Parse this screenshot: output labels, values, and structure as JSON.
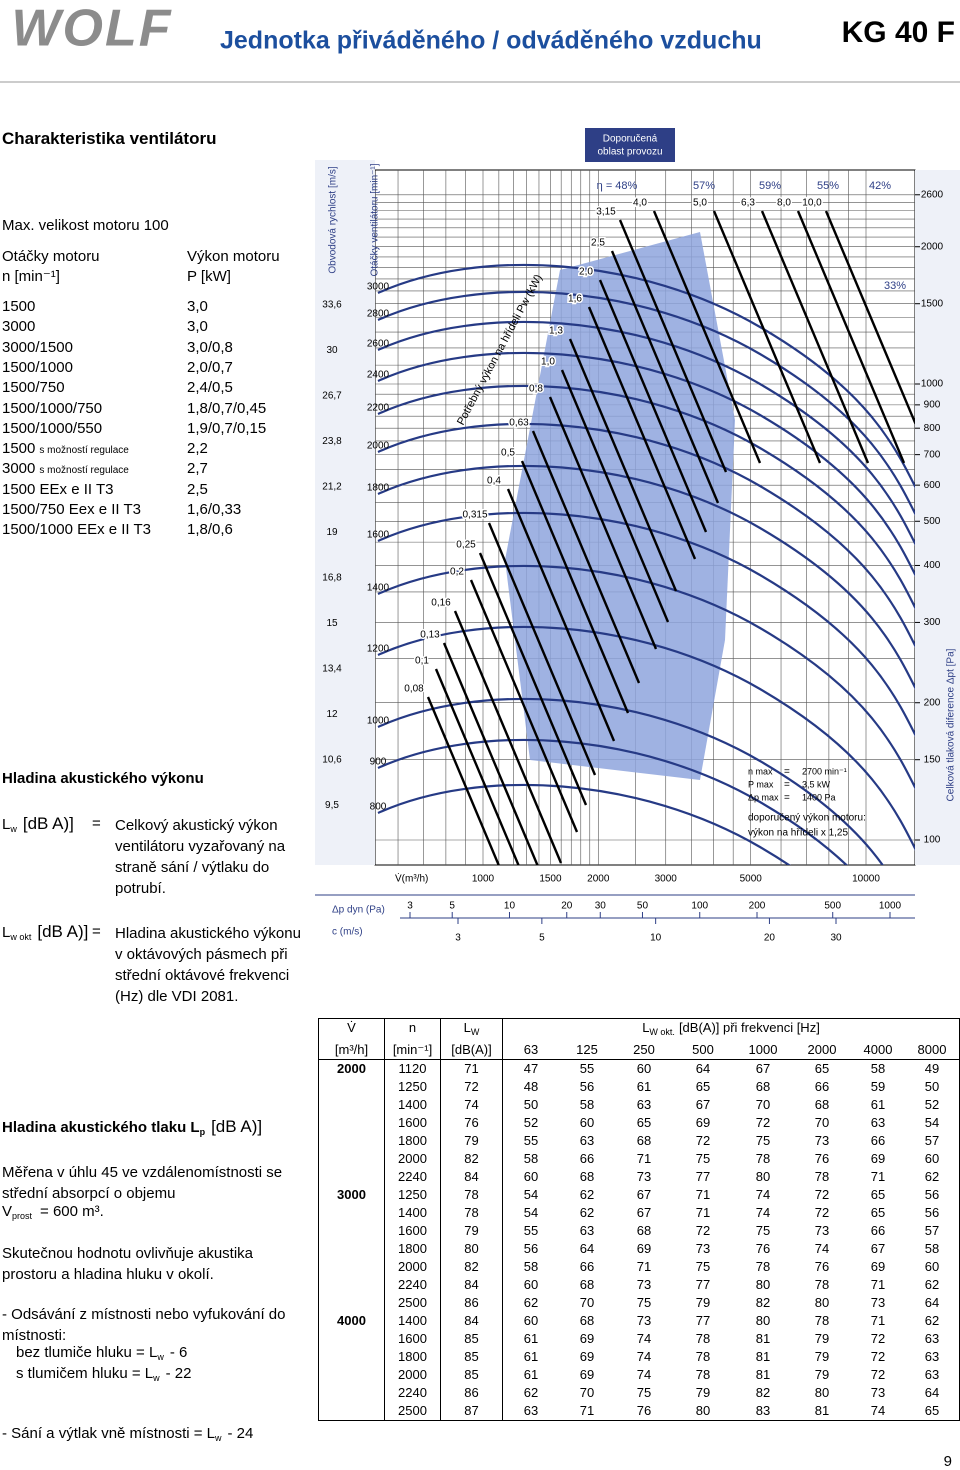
{
  "header": {
    "logo": "WOLF",
    "title": "Jednotka přiváděného / odváděného vzduchu",
    "model": "KG 40 F"
  },
  "section_title": "Charakteristika ventilátoru",
  "motor": {
    "heading": "Max. velikost motoru 100",
    "col_speed": "Otáčky motoru",
    "col_power": "Výkon motoru",
    "unit_speed": "n [min⁻¹]",
    "unit_power": "P [kW]",
    "rows": [
      {
        "n": "1500",
        "p": "3,0"
      },
      {
        "n": "3000",
        "p": "3,0"
      },
      {
        "n": "3000/1500",
        "p": "3,0/0,8"
      },
      {
        "n": "1500/1000",
        "p": "2,0/0,7"
      },
      {
        "n": "1500/750",
        "p": "2,4/0,5"
      },
      {
        "n": "1500/1000/750",
        "p": "1,8/0,7/0,45"
      },
      {
        "n": "1500/1000/550",
        "p": "1,9/0,7/0,15"
      },
      {
        "n": "1500",
        "note": "s možností regulace",
        "p": "2,2"
      },
      {
        "n": "3000",
        "note": "s možností regulace",
        "p": "2,7"
      },
      {
        "n": "1500 EEx e II T3",
        "p": "2,5"
      },
      {
        "n": "1500/750 Eex e II T3",
        "p": "1,6/0,33"
      },
      {
        "n": "1500/1000 EEx e II T3",
        "p": "1,8/0,6"
      }
    ]
  },
  "acoustic": {
    "title": "Hladina akustického výkonu",
    "lw": {
      "sym": "L",
      "sub": "w",
      "unit": "[dB A)]",
      "eq": "=",
      "desc": "Celkový akustický výkon ventilátoru vyzařovaný na straně sání / výtlaku do potrubí."
    },
    "lwokt": {
      "sym": "L",
      "sub": "w okt",
      "unit": "[dB A)]",
      "eq": "=",
      "desc": "Hladina akustického výkonu v oktávových pásmech při střední oktávové frekvenci (Hz) dle VDI 2081."
    }
  },
  "pressure": {
    "title": "Hladina akustického tlaku L",
    "sub": "p",
    "unit": "[dB A)]",
    "text1": "Měřena v úhlu 45 ve vzdálenomístnosti se střední absorpcí o objemu",
    "vol_sym": "V",
    "vol_sub": "prost",
    "vol_val": "= 600 m³.",
    "text2": "Skutečnou hodnotu ovlivňuje akustika prostoru a hladina hluku v okolí.",
    "item1": "- Odsávání z místnosti nebo vyfukování do místnosti:",
    "without": "bez tlumiče hluku = L",
    "without_sub": "w",
    "without_val": "- 6",
    "with": "s tlumičem hluku = L",
    "with_sub": "w",
    "with_val": "- 22",
    "item2": "- Sání a výtlak vně místnosti = L",
    "item2_sub": "w",
    "item2_val": "- 24"
  },
  "diagram": {
    "recommended": [
      "Doporučená",
      "oblast provozu"
    ],
    "velocity_title": "Obvodová rychlost [m/s]",
    "velocity": [
      "33,6",
      "30",
      "26,7",
      "23,8",
      "21,2",
      "19",
      "16,8",
      "15",
      "13,4",
      "12",
      "10,6",
      "9,5"
    ],
    "rpm_title": "Otáčky ventilátoru [min⁻¹]",
    "rpm": [
      3000,
      2800,
      2600,
      2400,
      2200,
      2000,
      1800,
      1600,
      1400,
      1200,
      1000,
      900,
      800
    ],
    "pressure_title": "Celková tlaková diference Δpt [Pa]",
    "pressure": [
      2600,
      2000,
      1500,
      1000,
      900,
      800,
      700,
      600,
      500,
      400,
      300,
      200,
      150,
      100
    ],
    "power_title": "Potřebný výkon na hřídeli Pw (kW)",
    "power": [
      "4,0",
      "5,0",
      "6,3",
      "8,0",
      "10,0",
      "3,15",
      "2,5",
      "2,0",
      "1,6",
      "1,3",
      "1,0",
      "0,8",
      "0,63",
      "0,5",
      "0,4",
      "0,315",
      "0,25",
      "0,2",
      "0,16",
      "0,13",
      "0,1",
      "0,08"
    ],
    "efficiency": [
      "η = 48%",
      "57%",
      "59%",
      "55%",
      "42%",
      "33%"
    ],
    "flow_title": "V̇(m³/h)",
    "flow": [
      1000,
      1500,
      2000,
      3000,
      5000,
      10000
    ],
    "dyn_title": "Δp dyn (Pa)",
    "dyn": [
      3,
      5,
      10,
      20,
      30,
      50,
      100,
      200,
      500,
      1000
    ],
    "c_title": "c (m/s)",
    "c": [
      3,
      5,
      10,
      20,
      30
    ],
    "limits": [
      {
        "sym": "n max",
        "eq": "=",
        "val": "2700 min⁻¹"
      },
      {
        "sym": "P max",
        "eq": "=",
        "val": "3,5 kW"
      },
      {
        "sym": "Δp max",
        "eq": "=",
        "val": "1400 Pa"
      }
    ],
    "motor_note": [
      "doporučený výkon motoru:",
      "výkon na hřídeli x 1,25"
    ]
  },
  "table": {
    "header": {
      "flow": "V̇",
      "flow_unit": "[m³/h]",
      "speed": "n",
      "speed_unit": "[min⁻¹]",
      "lw": "L",
      "lw_sub": "W",
      "lw_unit": "[dB(A)]",
      "okt": "L",
      "okt_sub": "W okt.",
      "okt_text": "[dB(A)] při frekvenci [Hz]",
      "freqs": [
        63,
        125,
        250,
        500,
        1000,
        2000,
        4000,
        8000
      ]
    },
    "groups": [
      {
        "flow": "2000",
        "rows": [
          [
            1120,
            71,
            47,
            55,
            60,
            64,
            67,
            65,
            58,
            49
          ],
          [
            1250,
            72,
            48,
            56,
            61,
            65,
            68,
            66,
            59,
            50
          ],
          [
            1400,
            74,
            50,
            58,
            63,
            67,
            70,
            68,
            61,
            52
          ],
          [
            1600,
            76,
            52,
            60,
            65,
            69,
            72,
            70,
            63,
            54
          ],
          [
            1800,
            79,
            55,
            63,
            68,
            72,
            75,
            73,
            66,
            57
          ],
          [
            2000,
            82,
            58,
            66,
            71,
            75,
            78,
            76,
            69,
            60
          ],
          [
            2240,
            84,
            60,
            68,
            73,
            77,
            80,
            78,
            71,
            62
          ]
        ]
      },
      {
        "flow": "3000",
        "rows": [
          [
            1250,
            78,
            54,
            62,
            67,
            71,
            74,
            72,
            65,
            56
          ],
          [
            1400,
            78,
            54,
            62,
            67,
            71,
            74,
            72,
            65,
            56
          ],
          [
            1600,
            79,
            55,
            63,
            68,
            72,
            75,
            73,
            66,
            57
          ],
          [
            1800,
            80,
            56,
            64,
            69,
            73,
            76,
            74,
            67,
            58
          ],
          [
            2000,
            82,
            58,
            66,
            71,
            75,
            78,
            76,
            69,
            60
          ],
          [
            2240,
            84,
            60,
            68,
            73,
            77,
            80,
            78,
            71,
            62
          ],
          [
            2500,
            86,
            62,
            70,
            75,
            79,
            82,
            80,
            73,
            64
          ]
        ]
      },
      {
        "flow": "4000",
        "rows": [
          [
            1400,
            84,
            60,
            68,
            73,
            77,
            80,
            78,
            71,
            62
          ],
          [
            1600,
            85,
            61,
            69,
            74,
            78,
            81,
            79,
            72,
            63
          ],
          [
            1800,
            85,
            61,
            69,
            74,
            78,
            81,
            79,
            72,
            63
          ],
          [
            2000,
            85,
            61,
            69,
            74,
            78,
            81,
            79,
            72,
            63
          ],
          [
            2240,
            86,
            62,
            70,
            75,
            79,
            82,
            80,
            73,
            64
          ],
          [
            2500,
            87,
            63,
            71,
            76,
            80,
            83,
            81,
            74,
            65
          ]
        ]
      }
    ]
  },
  "page_number": "9"
}
